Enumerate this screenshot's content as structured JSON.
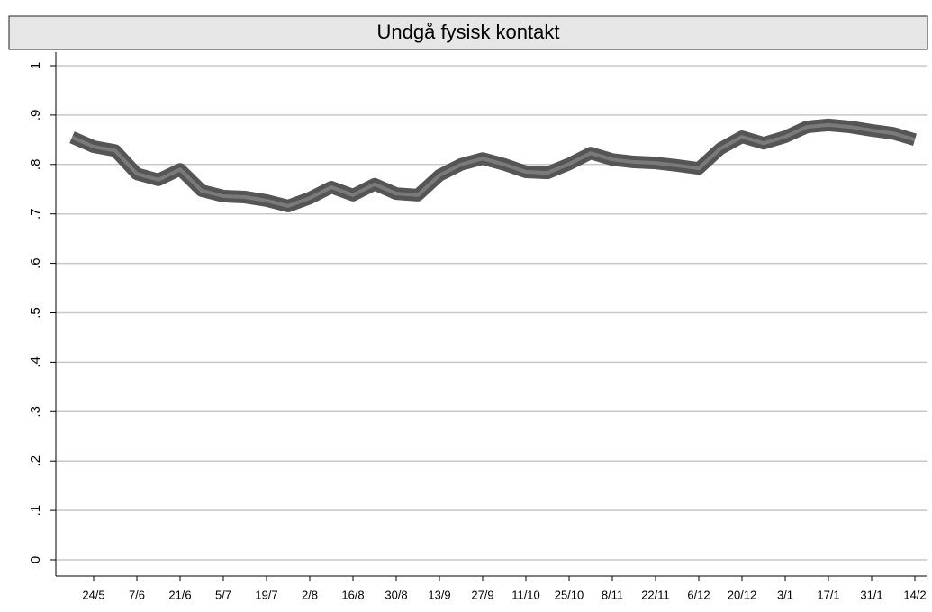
{
  "chart_data": {
    "type": "line",
    "title": "Undgå fysisk kontakt",
    "categories": [
      null,
      "24/5",
      null,
      "7/6",
      null,
      "21/6",
      null,
      "5/7",
      null,
      "19/7",
      null,
      "2/8",
      null,
      "16/8",
      null,
      "30/8",
      null,
      "13/9",
      null,
      "27/9",
      null,
      "11/10",
      null,
      "25/10",
      null,
      "8/11",
      null,
      "22/11",
      null,
      "6/12",
      null,
      "20/12",
      null,
      "3/1",
      null,
      "17/1",
      null,
      "31/1",
      null,
      "14/2"
    ],
    "values": [
      0.855,
      0.836,
      0.828,
      0.781,
      0.769,
      0.79,
      0.747,
      0.736,
      0.734,
      0.727,
      0.716,
      0.732,
      0.754,
      0.738,
      0.76,
      0.741,
      0.738,
      0.778,
      0.8,
      0.812,
      0.8,
      0.785,
      0.783,
      0.801,
      0.823,
      0.81,
      0.805,
      0.803,
      0.798,
      0.792,
      0.832,
      0.856,
      0.843,
      0.856,
      0.876,
      0.88,
      0.876,
      0.869,
      0.863,
      0.85
    ],
    "color": "#555555",
    "ylim": [
      0,
      1
    ],
    "yticks": [
      0,
      {
        "value": 0.1,
        "label": ".1"
      },
      {
        "value": 0.2,
        "label": ".2"
      },
      {
        "value": 0.3,
        "label": ".3"
      },
      {
        "value": 0.4,
        "label": ".4"
      },
      {
        "value": 0.5,
        "label": ".5"
      },
      {
        "value": 0.6,
        "label": ".6"
      },
      {
        "value": 0.7,
        "label": ".7"
      },
      {
        "value": 0.8,
        "label": ".8"
      },
      {
        "value": 0.9,
        "label": ".9"
      },
      1
    ],
    "grid": true
  }
}
